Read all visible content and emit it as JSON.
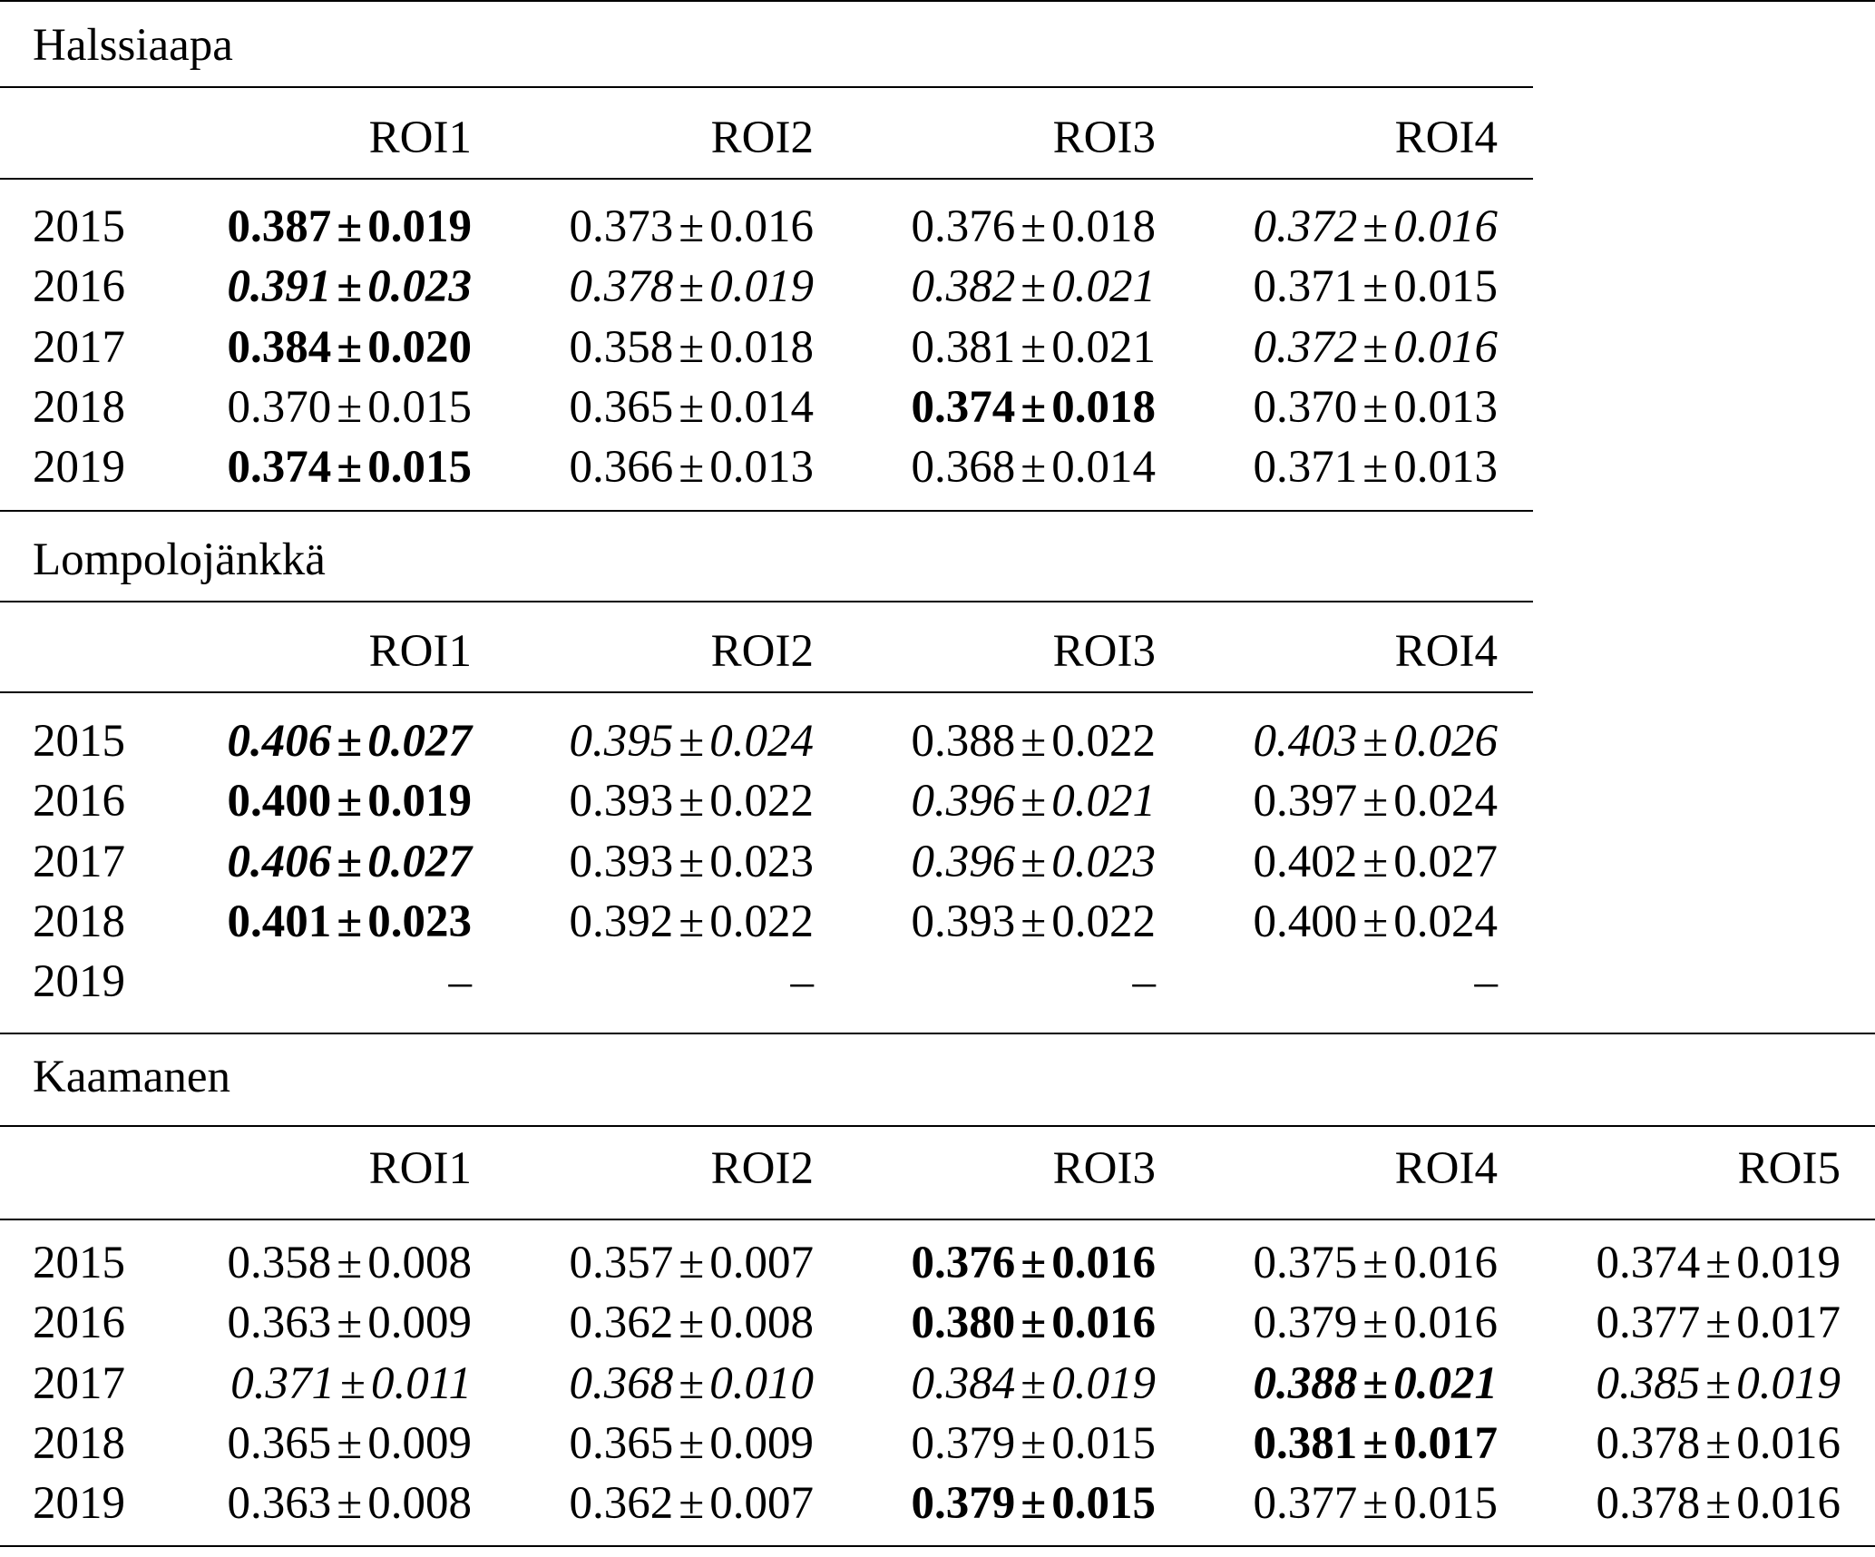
{
  "sections": [
    {
      "title": "Halssiaapa",
      "columns": [
        "ROI1",
        "ROI2",
        "ROI3",
        "ROI4"
      ],
      "rows": [
        {
          "year": "2015",
          "cells": [
            {
              "mean": "0.387",
              "sd": "0.019",
              "bold": true,
              "italic": false
            },
            {
              "mean": "0.373",
              "sd": "0.016",
              "bold": false,
              "italic": false
            },
            {
              "mean": "0.376",
              "sd": "0.018",
              "bold": false,
              "italic": false
            },
            {
              "mean": "0.372",
              "sd": "0.016",
              "bold": false,
              "italic": true
            }
          ]
        },
        {
          "year": "2016",
          "cells": [
            {
              "mean": "0.391",
              "sd": "0.023",
              "bold": true,
              "italic": true
            },
            {
              "mean": "0.378",
              "sd": "0.019",
              "bold": false,
              "italic": true
            },
            {
              "mean": "0.382",
              "sd": "0.021",
              "bold": false,
              "italic": true
            },
            {
              "mean": "0.371",
              "sd": "0.015",
              "bold": false,
              "italic": false
            }
          ]
        },
        {
          "year": "2017",
          "cells": [
            {
              "mean": "0.384",
              "sd": "0.020",
              "bold": true,
              "italic": false
            },
            {
              "mean": "0.358",
              "sd": "0.018",
              "bold": false,
              "italic": false
            },
            {
              "mean": "0.381",
              "sd": "0.021",
              "bold": false,
              "italic": false
            },
            {
              "mean": "0.372",
              "sd": "0.016",
              "bold": false,
              "italic": true
            }
          ]
        },
        {
          "year": "2018",
          "cells": [
            {
              "mean": "0.370",
              "sd": "0.015",
              "bold": false,
              "italic": false
            },
            {
              "mean": "0.365",
              "sd": "0.014",
              "bold": false,
              "italic": false
            },
            {
              "mean": "0.374",
              "sd": "0.018",
              "bold": true,
              "italic": false
            },
            {
              "mean": "0.370",
              "sd": "0.013",
              "bold": false,
              "italic": false
            }
          ]
        },
        {
          "year": "2019",
          "cells": [
            {
              "mean": "0.374",
              "sd": "0.015",
              "bold": true,
              "italic": false
            },
            {
              "mean": "0.366",
              "sd": "0.013",
              "bold": false,
              "italic": false
            },
            {
              "mean": "0.368",
              "sd": "0.014",
              "bold": false,
              "italic": false
            },
            {
              "mean": "0.371",
              "sd": "0.013",
              "bold": false,
              "italic": false
            }
          ]
        }
      ]
    },
    {
      "title": "Lompolojänkkä",
      "columns": [
        "ROI1",
        "ROI2",
        "ROI3",
        "ROI4"
      ],
      "rows": [
        {
          "year": "2015",
          "cells": [
            {
              "mean": "0.406",
              "sd": "0.027",
              "bold": true,
              "italic": true
            },
            {
              "mean": "0.395",
              "sd": "0.024",
              "bold": false,
              "italic": true
            },
            {
              "mean": "0.388",
              "sd": "0.022",
              "bold": false,
              "italic": false
            },
            {
              "mean": "0.403",
              "sd": "0.026",
              "bold": false,
              "italic": true
            }
          ]
        },
        {
          "year": "2016",
          "cells": [
            {
              "mean": "0.400",
              "sd": "0.019",
              "bold": true,
              "italic": false
            },
            {
              "mean": "0.393",
              "sd": "0.022",
              "bold": false,
              "italic": false
            },
            {
              "mean": "0.396",
              "sd": "0.021",
              "bold": false,
              "italic": true
            },
            {
              "mean": "0.397",
              "sd": "0.024",
              "bold": false,
              "italic": false
            }
          ]
        },
        {
          "year": "2017",
          "cells": [
            {
              "mean": "0.406",
              "sd": "0.027",
              "bold": true,
              "italic": true
            },
            {
              "mean": "0.393",
              "sd": "0.023",
              "bold": false,
              "italic": false
            },
            {
              "mean": "0.396",
              "sd": "0.023",
              "bold": false,
              "italic": true
            },
            {
              "mean": "0.402",
              "sd": "0.027",
              "bold": false,
              "italic": false
            }
          ]
        },
        {
          "year": "2018",
          "cells": [
            {
              "mean": "0.401",
              "sd": "0.023",
              "bold": true,
              "italic": false
            },
            {
              "mean": "0.392",
              "sd": "0.022",
              "bold": false,
              "italic": false
            },
            {
              "mean": "0.393",
              "sd": "0.022",
              "bold": false,
              "italic": false
            },
            {
              "mean": "0.400",
              "sd": "0.024",
              "bold": false,
              "italic": false
            }
          ]
        },
        {
          "year": "2019",
          "cells": [
            {
              "dash": "–"
            },
            {
              "dash": "–"
            },
            {
              "dash": "–"
            },
            {
              "dash": "–"
            }
          ]
        }
      ]
    },
    {
      "title": "Kaamanen",
      "columns": [
        "ROI1",
        "ROI2",
        "ROI3",
        "ROI4",
        "ROI5"
      ],
      "rows": [
        {
          "year": "2015",
          "cells": [
            {
              "mean": "0.358",
              "sd": "0.008",
              "bold": false,
              "italic": false
            },
            {
              "mean": "0.357",
              "sd": "0.007",
              "bold": false,
              "italic": false
            },
            {
              "mean": "0.376",
              "sd": "0.016",
              "bold": true,
              "italic": false
            },
            {
              "mean": "0.375",
              "sd": "0.016",
              "bold": false,
              "italic": false
            },
            {
              "mean": "0.374",
              "sd": "0.019",
              "bold": false,
              "italic": false
            }
          ]
        },
        {
          "year": "2016",
          "cells": [
            {
              "mean": "0.363",
              "sd": "0.009",
              "bold": false,
              "italic": false
            },
            {
              "mean": "0.362",
              "sd": "0.008",
              "bold": false,
              "italic": false
            },
            {
              "mean": "0.380",
              "sd": "0.016",
              "bold": true,
              "italic": false
            },
            {
              "mean": "0.379",
              "sd": "0.016",
              "bold": false,
              "italic": false
            },
            {
              "mean": "0.377",
              "sd": "0.017",
              "bold": false,
              "italic": false
            }
          ]
        },
        {
          "year": "2017",
          "cells": [
            {
              "mean": "0.371",
              "sd": "0.011",
              "bold": false,
              "italic": true
            },
            {
              "mean": "0.368",
              "sd": "0.010",
              "bold": false,
              "italic": true
            },
            {
              "mean": "0.384",
              "sd": "0.019",
              "bold": false,
              "italic": true
            },
            {
              "mean": "0.388",
              "sd": "0.021",
              "bold": true,
              "italic": true
            },
            {
              "mean": "0.385",
              "sd": "0.019",
              "bold": false,
              "italic": true
            }
          ]
        },
        {
          "year": "2018",
          "cells": [
            {
              "mean": "0.365",
              "sd": "0.009",
              "bold": false,
              "italic": false
            },
            {
              "mean": "0.365",
              "sd": "0.009",
              "bold": false,
              "italic": false
            },
            {
              "mean": "0.379",
              "sd": "0.015",
              "bold": false,
              "italic": false
            },
            {
              "mean": "0.381",
              "sd": "0.017",
              "bold": true,
              "italic": false
            },
            {
              "mean": "0.378",
              "sd": "0.016",
              "bold": false,
              "italic": false
            }
          ]
        },
        {
          "year": "2019",
          "cells": [
            {
              "mean": "0.363",
              "sd": "0.008",
              "bold": false,
              "italic": false
            },
            {
              "mean": "0.362",
              "sd": "0.007",
              "bold": false,
              "italic": false
            },
            {
              "mean": "0.379",
              "sd": "0.015",
              "bold": true,
              "italic": false
            },
            {
              "mean": "0.377",
              "sd": "0.015",
              "bold": false,
              "italic": false
            },
            {
              "mean": "0.378",
              "sd": "0.016",
              "bold": false,
              "italic": false
            }
          ]
        }
      ]
    }
  ]
}
